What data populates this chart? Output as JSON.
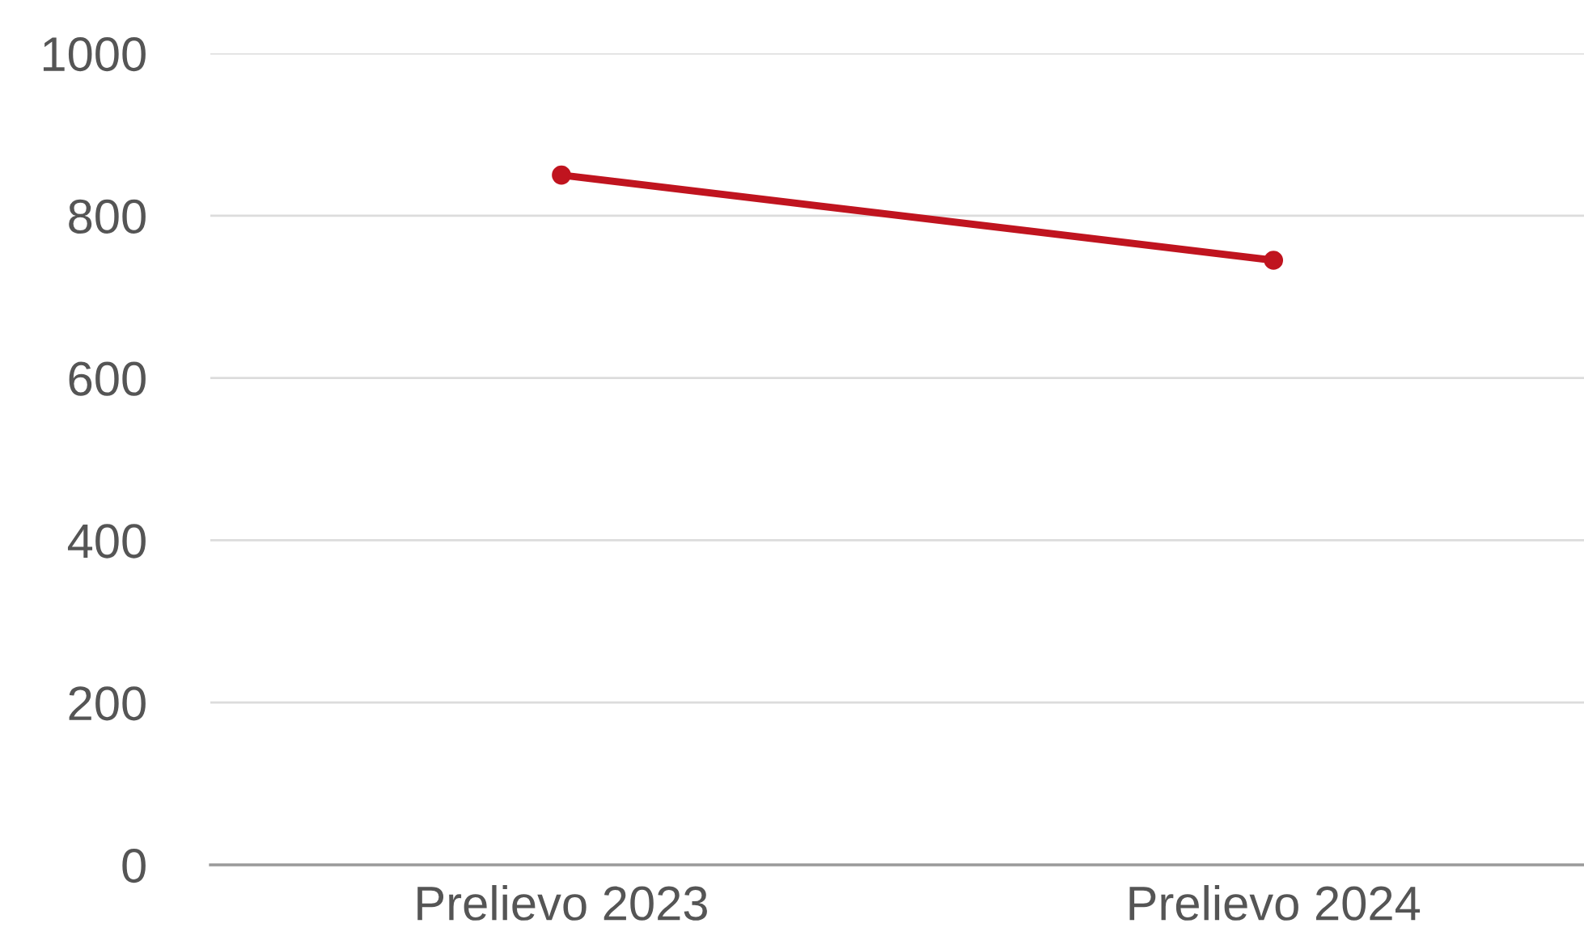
{
  "chart_data": {
    "type": "line",
    "categories": [
      "Prelievo 2023",
      "Prelievo 2024"
    ],
    "series": [
      {
        "color": "#c0141f",
        "values": [
          850,
          745
        ]
      }
    ],
    "ylim": [
      0,
      1000
    ],
    "yticks": [
      0,
      200,
      400,
      600,
      800,
      1000
    ],
    "grid": "y",
    "marker": "circle",
    "line_style": "solid"
  }
}
